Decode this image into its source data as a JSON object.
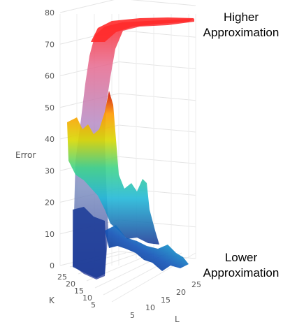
{
  "chart_data": {
    "type": "surface",
    "axes": {
      "z": {
        "label": "Error",
        "ticks": [
          0,
          10,
          20,
          30,
          40,
          50,
          60,
          70,
          80
        ],
        "range": [
          0,
          80
        ]
      },
      "k": {
        "label": "K",
        "ticks": [
          5,
          10,
          15,
          20,
          25
        ],
        "range": [
          1,
          28
        ]
      },
      "l": {
        "label": "L",
        "ticks": [
          5,
          10,
          15,
          20,
          25
        ],
        "range": [
          1,
          28
        ]
      }
    },
    "grid": true,
    "annotations": [
      {
        "line1": "Higher",
        "line2": "Approximation"
      },
      {
        "line1": "Lower",
        "line2": "Approximation"
      }
    ],
    "colors": [
      "#0a1e6e",
      "#19a8d0",
      "#3fd488",
      "#d8d800",
      "#ff9a00",
      "#ff2020"
    ]
  }
}
